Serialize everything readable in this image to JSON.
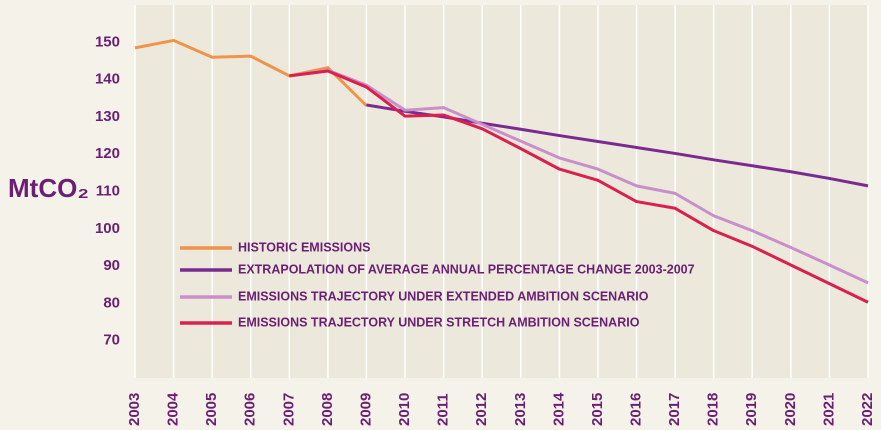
{
  "chart_data": {
    "type": "line",
    "y_label": "MtCO₂",
    "categories": [
      "2003",
      "2004",
      "2005",
      "2006",
      "2007",
      "2008",
      "2009",
      "2010",
      "2011",
      "2012",
      "2013",
      "2014",
      "2015",
      "2016",
      "2017",
      "2018",
      "2019",
      "2020",
      "2021",
      "2022"
    ],
    "series": [
      {
        "name": "HISTORIC EMISSIONS",
        "color": "#f0944a",
        "values": [
          148.5,
          150.5,
          146,
          146.3,
          141,
          143.2,
          133,
          null,
          null,
          null,
          null,
          null,
          null,
          null,
          null,
          null,
          null,
          null,
          null,
          null
        ]
      },
      {
        "name": "EXTRAPOLATION OF AVERAGE ANNUAL PERCENTAGE CHANGE 2003-2007",
        "color": "#7b2a8f",
        "values": [
          null,
          null,
          null,
          null,
          null,
          null,
          133.2,
          131.5,
          130,
          128.3,
          126.7,
          125,
          123.4,
          121.8,
          120.2,
          118.5,
          116.9,
          115.3,
          113.5,
          111.5
        ]
      },
      {
        "name": "EMISSIONS TRAJECTORY UNDER EXTENDED AMBITION SCENARIO",
        "color": "#c98fc9",
        "values": [
          null,
          null,
          null,
          null,
          141,
          142.5,
          138.5,
          131.8,
          132.5,
          128,
          123.5,
          119,
          116,
          111.5,
          109.5,
          103.5,
          99.5,
          95,
          90.3,
          85.5
        ]
      },
      {
        "name": "EMISSIONS TRAJECTORY UNDER STRETCH AMBITION SCENARIO",
        "color": "#d9204e",
        "values": [
          null,
          null,
          null,
          null,
          141,
          142.3,
          138,
          130.2,
          130.5,
          126.8,
          121.5,
          116,
          113,
          107.3,
          105.5,
          99.5,
          95.3,
          90.3,
          85.3,
          80.3
        ]
      }
    ],
    "ylim": [
      60,
      160
    ],
    "yticks": [
      70,
      80,
      90,
      100,
      110,
      120,
      130,
      140,
      150
    ],
    "grid": true
  }
}
